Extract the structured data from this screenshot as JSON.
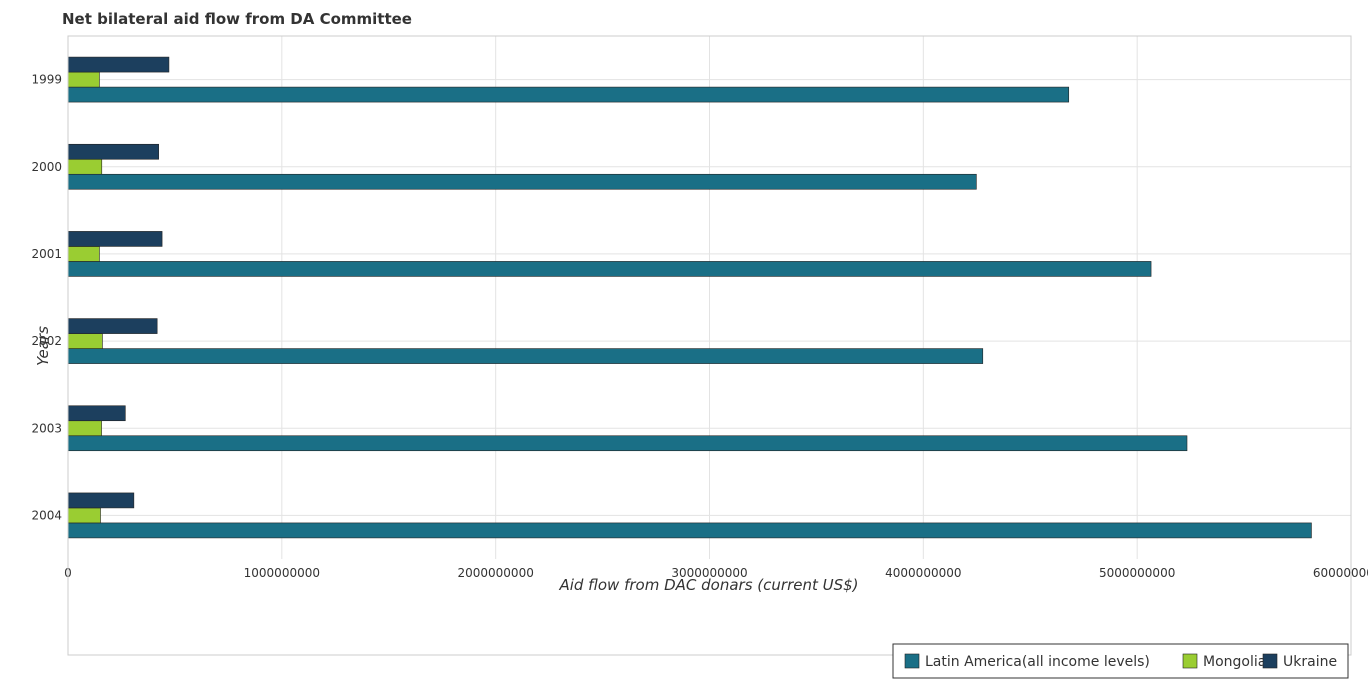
{
  "chart_data": {
    "type": "bar",
    "orientation": "horizontal",
    "title": "Net bilateral aid flow from DA Committee",
    "xlabel": "Aid flow from DAC donars (current US$)",
    "ylabel": "Years",
    "xlim": [
      0,
      6000000000
    ],
    "xticks": [
      0,
      1000000000,
      2000000000,
      3000000000,
      4000000000,
      5000000000,
      6000000000
    ],
    "xtick_labels": [
      "0",
      "1000000000",
      "2000000000",
      "3000000000",
      "4000000000",
      "5000000000",
      "6000000000"
    ],
    "categories": [
      "1999",
      "2000",
      "2001",
      "2002",
      "2003",
      "2004"
    ],
    "grid": true,
    "legend_position": "bottom-right",
    "series": [
      {
        "name": "Latin America(all income levels)",
        "color": "#1a6f86",
        "values": [
          4680000000,
          4248000000,
          5065000000,
          4278000000,
          5233000000,
          5815000000
        ]
      },
      {
        "name": "Mongolia",
        "color": "#9acd32",
        "values": [
          147000000,
          158000000,
          147000000,
          161000000,
          157000000,
          152000000
        ]
      },
      {
        "name": "Ukraine",
        "color": "#1c3f5e",
        "values": [
          472000000,
          424000000,
          440000000,
          417000000,
          268000000,
          308000000
        ]
      }
    ]
  }
}
